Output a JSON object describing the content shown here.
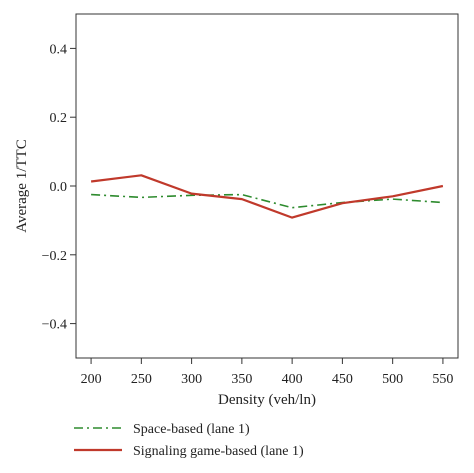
{
  "chart_data": {
    "type": "line",
    "xlabel": "Density (veh/ln)",
    "ylabel": "Average 1/TTC",
    "xlim": [
      185,
      565
    ],
    "ylim": [
      -0.5,
      0.5
    ],
    "x": [
      200,
      250,
      300,
      350,
      400,
      450,
      500,
      550
    ],
    "xticks": [
      "200",
      "250",
      "300",
      "350",
      "400",
      "450",
      "500",
      "550"
    ],
    "yticks": [
      {
        "value": 0.4,
        "label": "0.4"
      },
      {
        "value": 0.2,
        "label": "0.2"
      },
      {
        "value": 0.0,
        "label": "0.0"
      },
      {
        "value": -0.2,
        "label": "−0.2"
      },
      {
        "value": -0.4,
        "label": "−0.4"
      }
    ],
    "grid": false,
    "legend_position": "bottom-left",
    "series": [
      {
        "name": "Space-based (lane 1)",
        "color": "#2e8b2e",
        "style": "dash-dot",
        "values": [
          -0.025,
          -0.033,
          -0.027,
          -0.025,
          -0.063,
          -0.048,
          -0.038,
          -0.048
        ]
      },
      {
        "name": "Signaling game-based (lane 1)",
        "color": "#c0392b",
        "style": "solid",
        "values": [
          0.013,
          0.031,
          -0.022,
          -0.038,
          -0.092,
          -0.05,
          -0.03,
          0.0
        ]
      }
    ]
  }
}
